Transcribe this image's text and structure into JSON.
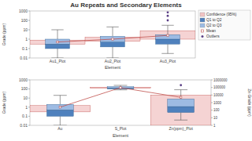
{
  "chart_data": [
    {
      "type": "box",
      "title": "Au Repeats and Secondary Elements",
      "x_label": "Element",
      "y_label": "Grade (ppm)",
      "log": "y",
      "grid": false,
      "legend": "top-right",
      "categories": [
        "Au1_Plot",
        "Au2_Plot",
        "Au3_Plot"
      ],
      "ylim": [
        0.01,
        1000
      ],
      "yticks": [
        0.01,
        0.1,
        1,
        10,
        100,
        1000
      ],
      "series": [
        {
          "name": "Confidence (95%)",
          "color": "#f2c4c4"
        },
        {
          "name": "Q1 to Q2",
          "color": "#4f81bd"
        },
        {
          "name": "Q2 to Q3",
          "color": "#9dbbe3"
        },
        {
          "name": "Mean",
          "color": "#c0504d"
        },
        {
          "name": "Outliers",
          "color": "#5b3f86"
        }
      ],
      "boxes": [
        {
          "whisker_low": 0.01,
          "q1": 0.1,
          "median": 0.3,
          "q3": 1,
          "whisker_high": 10,
          "mean": 0.5,
          "ci": [
            0.3,
            0.8
          ],
          "outliers": []
        },
        {
          "whisker_low": 0.01,
          "q1": 0.15,
          "median": 0.5,
          "q3": 2,
          "whisker_high": 20,
          "mean": 1,
          "ci": [
            0.6,
            1.6
          ],
          "outliers": []
        },
        {
          "whisker_low": 0.03,
          "q1": 0.3,
          "median": 1,
          "q3": 3,
          "whisker_high": 30,
          "mean": 2.5,
          "ci": [
            1,
            8
          ],
          "outliers": [
            100,
            300,
            700
          ]
        }
      ]
    },
    {
      "type": "box",
      "x_label": "Element",
      "y_label": "Grade (ppm)",
      "y2_label": "Zn Grade (ppm)",
      "log": "y",
      "grid": false,
      "categories": [
        "Au",
        "S_Plot",
        "Zn(ppm)_Plot"
      ],
      "ylim": [
        0.01,
        1000
      ],
      "yticks": [
        0.01,
        0.1,
        1,
        10,
        100,
        1000
      ],
      "y2lim": [
        1,
        1000000
      ],
      "y2ticks": [
        1,
        10,
        100,
        1000,
        10000,
        100000,
        1000000
      ],
      "boxes": [
        {
          "whisker_low": 0.01,
          "q1": 0.1,
          "median": 0.5,
          "q3": 2,
          "whisker_high": 20,
          "mean": 1,
          "ci": [
            0.3,
            1.5
          ],
          "outliers": []
        },
        {
          "whisker_low": 80,
          "q1": 100,
          "median": 130,
          "q3": 180,
          "whisker_high": 250,
          "mean": 140,
          "ci": [
            120,
            160
          ],
          "outliers": []
        },
        {
          "axis": "y2",
          "whisker_low": 5,
          "q1": 50,
          "median": 300,
          "q3": 3000,
          "whisker_high": 50000,
          "mean": 5000,
          "ci": [
            1,
            10000
          ],
          "outliers": [
            200000
          ]
        }
      ]
    }
  ]
}
